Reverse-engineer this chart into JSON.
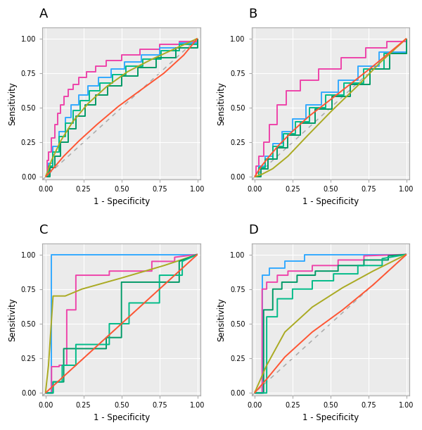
{
  "panel_labels": [
    "A",
    "B",
    "C",
    "D"
  ],
  "colors": {
    "magenta": "#EE44AA",
    "blue": "#33AAFF",
    "teal": "#00BB88",
    "green": "#009966",
    "red": "#FF5533",
    "olive": "#AAAA22"
  },
  "panel_bg": "#EBEBEB",
  "fig_bg": "#FFFFFF",
  "grid_color": "#FFFFFF",
  "diag_color": "#AAAAAA",
  "axis_label_fontsize": 8.5,
  "panel_label_fontsize": 13,
  "tick_fontsize": 7,
  "line_width": 1.4,
  "tick_labels": [
    "0.00",
    "0.25",
    "0.50",
    "0.75",
    "1.00"
  ],
  "tick_vals": [
    0.0,
    0.25,
    0.5,
    0.75,
    1.0
  ],
  "A_magenta_fpr": [
    0,
    0.01,
    0.02,
    0.04,
    0.06,
    0.08,
    0.1,
    0.12,
    0.15,
    0.18,
    0.22,
    0.27,
    0.33,
    0.4,
    0.5,
    0.62,
    0.75,
    0.88,
    1.0
  ],
  "A_magenta_tpr": [
    0,
    0.12,
    0.18,
    0.28,
    0.38,
    0.46,
    0.52,
    0.58,
    0.63,
    0.67,
    0.72,
    0.76,
    0.8,
    0.84,
    0.88,
    0.92,
    0.96,
    0.98,
    1.0
  ],
  "A_blue_fpr": [
    0,
    0.02,
    0.05,
    0.09,
    0.13,
    0.17,
    0.22,
    0.28,
    0.35,
    0.43,
    0.52,
    0.63,
    0.75,
    0.88,
    1.0
  ],
  "A_blue_tpr": [
    0,
    0.1,
    0.22,
    0.33,
    0.43,
    0.52,
    0.59,
    0.66,
    0.72,
    0.78,
    0.83,
    0.88,
    0.93,
    0.97,
    1.0
  ],
  "A_teal_fpr": [
    0,
    0.02,
    0.05,
    0.09,
    0.13,
    0.18,
    0.23,
    0.29,
    0.36,
    0.44,
    0.53,
    0.64,
    0.76,
    0.88,
    1.0
  ],
  "A_teal_tpr": [
    0,
    0.08,
    0.18,
    0.29,
    0.39,
    0.48,
    0.55,
    0.62,
    0.68,
    0.74,
    0.8,
    0.85,
    0.91,
    0.96,
    1.0
  ],
  "A_green_fpr": [
    0,
    0.03,
    0.06,
    0.1,
    0.15,
    0.2,
    0.26,
    0.33,
    0.41,
    0.5,
    0.61,
    0.73,
    0.86,
    1.0
  ],
  "A_green_tpr": [
    0,
    0.07,
    0.15,
    0.25,
    0.35,
    0.44,
    0.52,
    0.59,
    0.66,
    0.73,
    0.79,
    0.86,
    0.93,
    1.0
  ],
  "A_olive_fpr": [
    0,
    0.04,
    0.1,
    0.18,
    0.28,
    0.4,
    0.54,
    0.7,
    0.86,
    1.0
  ],
  "A_olive_tpr": [
    0,
    0.12,
    0.26,
    0.4,
    0.53,
    0.65,
    0.76,
    0.85,
    0.93,
    1.0
  ],
  "A_red_fpr": [
    0,
    0.05,
    0.12,
    0.22,
    0.34,
    0.48,
    0.63,
    0.78,
    0.91,
    1.0
  ],
  "A_red_tpr": [
    0,
    0.06,
    0.15,
    0.26,
    0.38,
    0.51,
    0.63,
    0.75,
    0.88,
    1.0
  ],
  "B_magenta_fpr": [
    0,
    0.01,
    0.03,
    0.06,
    0.1,
    0.15,
    0.21,
    0.3,
    0.42,
    0.57,
    0.73,
    0.87,
    1.0
  ],
  "B_magenta_tpr": [
    0,
    0.08,
    0.15,
    0.25,
    0.38,
    0.52,
    0.62,
    0.7,
    0.78,
    0.86,
    0.93,
    0.98,
    1.0
  ],
  "B_blue_fpr": [
    0,
    0.03,
    0.07,
    0.12,
    0.18,
    0.25,
    0.34,
    0.44,
    0.55,
    0.68,
    0.82,
    1.0
  ],
  "B_blue_tpr": [
    0,
    0.08,
    0.15,
    0.24,
    0.33,
    0.42,
    0.52,
    0.61,
    0.7,
    0.8,
    0.9,
    1.0
  ],
  "B_teal_fpr": [
    0,
    0.03,
    0.07,
    0.12,
    0.19,
    0.27,
    0.36,
    0.47,
    0.59,
    0.72,
    0.85,
    1.0
  ],
  "B_teal_tpr": [
    0,
    0.07,
    0.13,
    0.22,
    0.31,
    0.4,
    0.5,
    0.59,
    0.68,
    0.78,
    0.89,
    1.0
  ],
  "B_green_fpr": [
    0,
    0.04,
    0.09,
    0.15,
    0.22,
    0.3,
    0.4,
    0.51,
    0.63,
    0.76,
    0.89,
    1.0
  ],
  "B_green_tpr": [
    0,
    0.06,
    0.13,
    0.21,
    0.3,
    0.39,
    0.49,
    0.58,
    0.67,
    0.78,
    0.89,
    1.0
  ],
  "B_olive_fpr": [
    0,
    0.05,
    0.12,
    0.22,
    0.35,
    0.51,
    0.68,
    0.83,
    1.0
  ],
  "B_olive_tpr": [
    0,
    0.02,
    0.06,
    0.15,
    0.3,
    0.48,
    0.66,
    0.83,
    1.0
  ],
  "B_red_fpr": [
    0,
    0.04,
    0.09,
    0.16,
    0.25,
    0.36,
    0.49,
    0.63,
    0.78,
    1.0
  ],
  "B_red_tpr": [
    0,
    0.07,
    0.14,
    0.23,
    0.33,
    0.44,
    0.55,
    0.67,
    0.8,
    1.0
  ],
  "C_blue_fpr_pts": [
    0.04,
    0.4
  ],
  "C_blue_tpr_pts": [
    1.0,
    1.0
  ],
  "C_magenta_fpr_pts": [
    0.04,
    0.09,
    0.14,
    0.2,
    0.42,
    0.7,
    0.85
  ],
  "C_magenta_tpr_pts": [
    0.19,
    0.2,
    0.6,
    0.85,
    0.88,
    0.95,
    0.98
  ],
  "C_olive_fpr": [
    0,
    0.02,
    0.05,
    0.13,
    0.24,
    0.5,
    0.78,
    1.0
  ],
  "C_olive_tpr": [
    0,
    0.2,
    0.7,
    0.7,
    0.75,
    0.83,
    0.92,
    1.0
  ],
  "C_green_fpr_pts": [
    0.05,
    0.12,
    0.13,
    0.4,
    0.5,
    0.72,
    0.88
  ],
  "C_green_tpr_pts": [
    0.08,
    0.32,
    0.32,
    0.4,
    0.8,
    0.8,
    0.95
  ],
  "C_teal_fpr_pts": [
    0.05,
    0.11,
    0.2,
    0.42,
    0.55,
    0.75,
    0.9
  ],
  "C_teal_tpr_pts": [
    0.08,
    0.2,
    0.35,
    0.5,
    0.65,
    0.85,
    0.95
  ],
  "C_red_fpr": [
    0,
    0.1,
    0.3,
    0.5,
    0.7,
    0.9,
    1.0
  ],
  "C_red_tpr": [
    0,
    0.1,
    0.3,
    0.5,
    0.7,
    0.9,
    1.0
  ],
  "D_blue_fpr_pts": [
    0.05,
    0.1,
    0.2,
    0.33
  ],
  "D_blue_tpr_pts": [
    0.85,
    0.9,
    0.95,
    1.0
  ],
  "D_magenta_fpr_pts": [
    0.05,
    0.08,
    0.15,
    0.22,
    0.38,
    0.55,
    0.72
  ],
  "D_magenta_tpr_pts": [
    0.75,
    0.8,
    0.85,
    0.88,
    0.92,
    0.96,
    0.99
  ],
  "D_green_fpr_pts": [
    0.06,
    0.12,
    0.18,
    0.28,
    0.4,
    0.55,
    0.72,
    0.88
  ],
  "D_green_tpr_pts": [
    0.6,
    0.75,
    0.8,
    0.85,
    0.88,
    0.92,
    0.96,
    0.99
  ],
  "D_teal_fpr_pts": [
    0.08,
    0.15,
    0.25,
    0.38,
    0.52,
    0.68,
    0.84
  ],
  "D_teal_tpr_pts": [
    0.55,
    0.68,
    0.75,
    0.81,
    0.86,
    0.92,
    0.97
  ],
  "D_olive_fpr": [
    0,
    0.08,
    0.2,
    0.38,
    0.58,
    0.78,
    1.0
  ],
  "D_olive_tpr": [
    0,
    0.2,
    0.44,
    0.62,
    0.76,
    0.88,
    1.0
  ],
  "D_red_fpr": [
    0,
    0.08,
    0.2,
    0.38,
    0.58,
    0.78,
    1.0
  ],
  "D_red_tpr": [
    0,
    0.1,
    0.26,
    0.44,
    0.6,
    0.78,
    1.0
  ]
}
